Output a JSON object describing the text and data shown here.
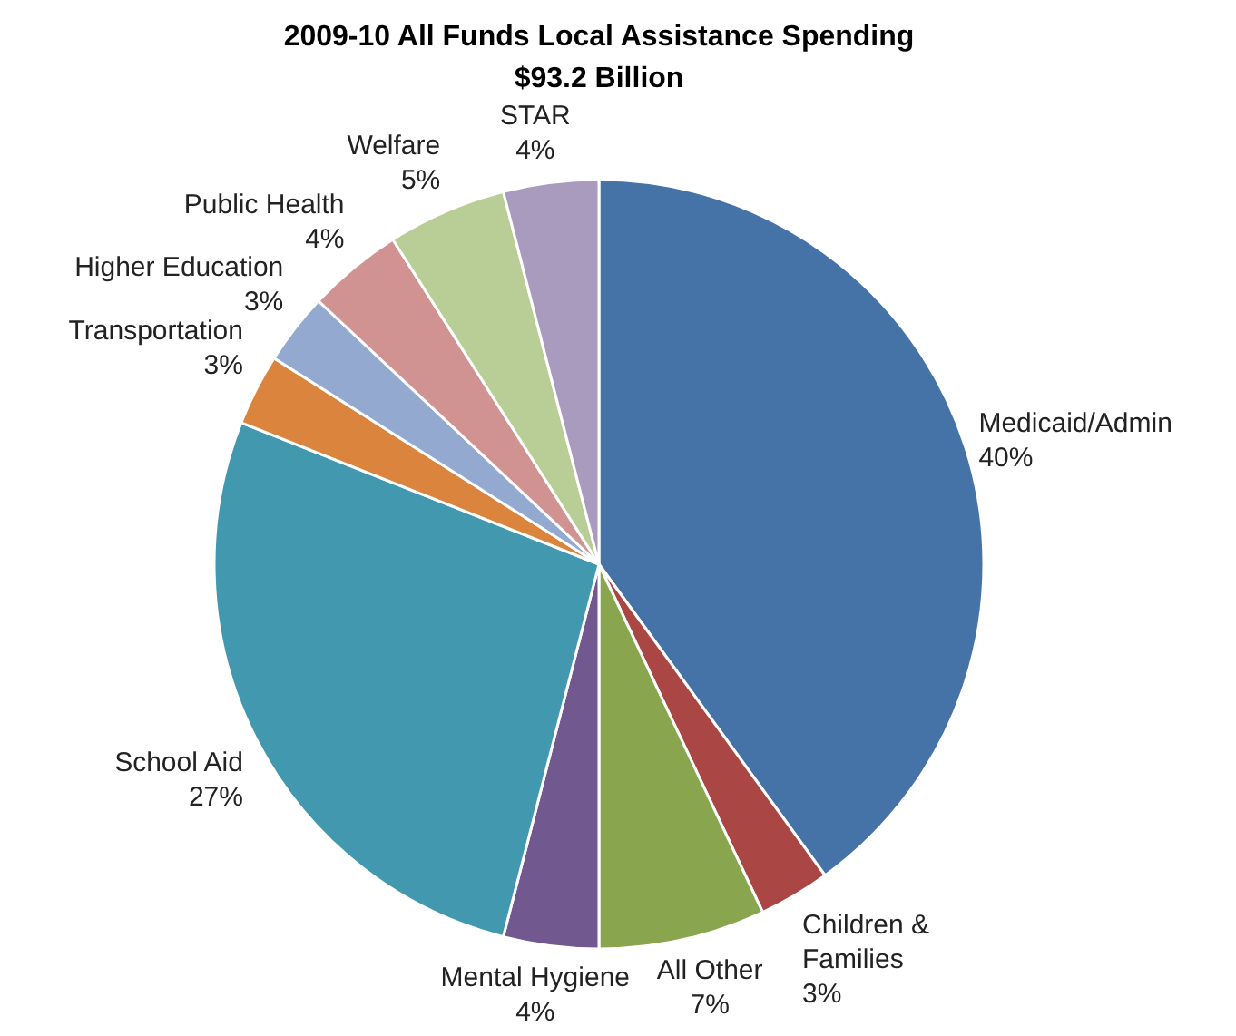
{
  "chart_data": {
    "type": "pie",
    "title": "2009-10 All Funds Local Assistance Spending",
    "subtitle": "$93.2 Billion",
    "categories": [
      "Medicaid/Admin",
      "Children & Families",
      "All Other",
      "Mental Hygiene",
      "School Aid",
      "Transportation",
      "Higher Education",
      "Public Health",
      "Welfare",
      "STAR"
    ],
    "values": [
      40,
      3,
      7,
      4,
      27,
      3,
      3,
      4,
      5,
      4
    ],
    "value_labels": [
      "40%",
      "3%",
      "7%",
      "4%",
      "27%",
      "3%",
      "3%",
      "4%",
      "5%",
      "4%"
    ],
    "colors": [
      "#4572a7",
      "#aa4643",
      "#89a54e",
      "#71588f",
      "#4198af",
      "#db843d",
      "#93a9cf",
      "#d19392",
      "#b9cd96",
      "#a99bbd"
    ]
  }
}
